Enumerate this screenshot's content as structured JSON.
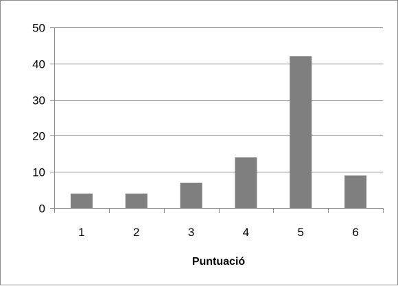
{
  "chart_data": {
    "type": "bar",
    "title": "",
    "xlabel": "Puntuació",
    "ylabel": "",
    "categories": [
      "1",
      "2",
      "3",
      "4",
      "5",
      "6"
    ],
    "values": [
      4,
      4,
      7,
      14,
      42,
      9
    ],
    "ylim": [
      0,
      50
    ],
    "yticks": [
      0,
      10,
      20,
      30,
      40,
      50
    ],
    "grid": true,
    "legend": "none",
    "colors": {
      "bar": "#7f7f7f",
      "grid": "#8c8c8c",
      "axis": "#8c8c8c",
      "text": "#000000"
    }
  }
}
